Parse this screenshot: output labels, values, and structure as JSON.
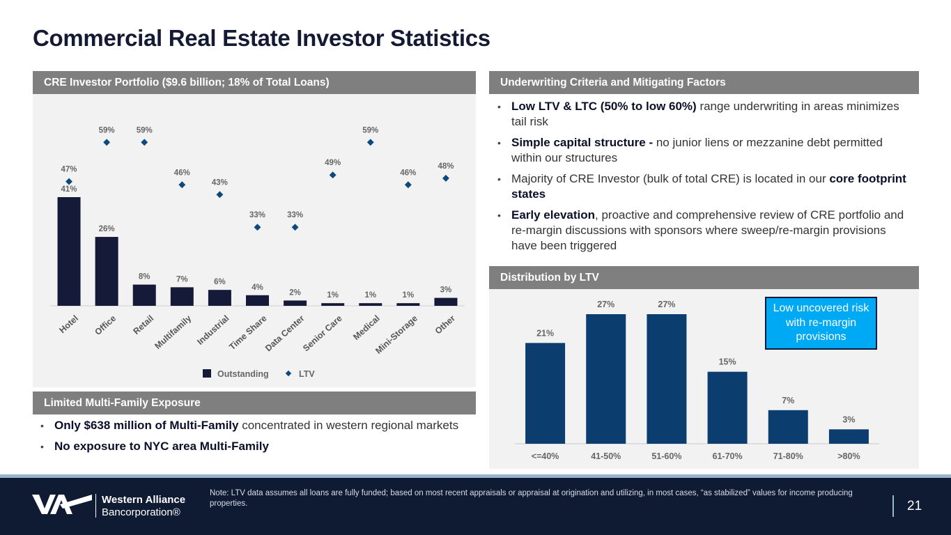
{
  "page_title": "Commercial Real Estate Investor Statistics",
  "portfolio_panel": {
    "header": "CRE Investor Portfolio ($9.6 billion; 18% of Total Loans)"
  },
  "underwriting_panel": {
    "header": "Underwriting Criteria and Mitigating Factors",
    "bullets": [
      {
        "bold": "Low LTV & LTC (50% to low 60%)",
        "text": " range underwriting in areas minimizes tail risk"
      },
      {
        "bold": "Simple capital structure -",
        "text": " no junior liens or mezzanine debt permitted within our structures"
      },
      {
        "pre": "Majority of CRE Investor (bulk of total CRE) is located in our ",
        "bold": "core footprint states"
      },
      {
        "bold": "Early elevation",
        "text": ", proactive and comprehensive review of CRE portfolio and re-margin discussions with sponsors where sweep/re-margin provisions have been triggered"
      }
    ]
  },
  "ltv_panel": {
    "header": "Distribution by LTV",
    "callout": "Low uncovered risk with re-margin provisions"
  },
  "multifamily_panel": {
    "header": "Limited Multi-Family Exposure",
    "bullets": [
      {
        "bold": "Only $638 million of Multi-Family",
        "text": " concentrated in western regional markets"
      },
      {
        "bold": "No exposure to NYC area Multi-Family",
        "text": ""
      }
    ]
  },
  "bullet_glyph": "•",
  "footer": {
    "note": "Note: LTV data assumes all loans are fully funded; based on most recent appraisals or appraisal at origination and utilizing, in most cases, “as stabilized” values for income producing properties.",
    "page_number": "21",
    "logo_name": "Western Alliance",
    "logo_sub": "Bancorporation®"
  },
  "colors": {
    "bar_navy": "#141a38",
    "ltv_marker": "#0c4a7d",
    "ltv_bar": "#0b3d6e",
    "callout": "#00a9f4",
    "header_gray": "#7f7f7f"
  },
  "chart_data": [
    {
      "type": "bar",
      "categories": [
        "Hotel",
        "Office",
        "Retail",
        "Multifamily",
        "Industrial",
        "Time Share",
        "Data Center",
        "Senior Care",
        "Medical",
        "Mini-Storage",
        "Other"
      ],
      "series": [
        {
          "name": "Outstanding",
          "kind": "bar",
          "values": [
            41,
            26,
            8,
            7,
            6,
            4,
            2,
            1,
            1,
            1,
            3
          ],
          "labels": [
            "41%",
            "26%",
            "8%",
            "7%",
            "6%",
            "4%",
            "2%",
            "1%",
            "1%",
            "1%",
            "3%"
          ]
        },
        {
          "name": "LTV",
          "kind": "marker",
          "values": [
            47,
            59,
            59,
            46,
            43,
            33,
            33,
            49,
            59,
            46,
            48
          ],
          "labels": [
            "47%",
            "59%",
            "59%",
            "46%",
            "43%",
            "33%",
            "33%",
            "49%",
            "59%",
            "46%",
            "48%"
          ]
        }
      ],
      "legend_position": "bottom",
      "grid": false
    },
    {
      "type": "bar",
      "categories": [
        "<=40%",
        "41-50%",
        "51-60%",
        "61-70%",
        "71-80%",
        ">80%"
      ],
      "values": [
        21,
        27,
        27,
        15,
        7,
        3
      ],
      "labels": [
        "21%",
        "27%",
        "27%",
        "15%",
        "7%",
        "3%"
      ],
      "grid": false
    }
  ]
}
